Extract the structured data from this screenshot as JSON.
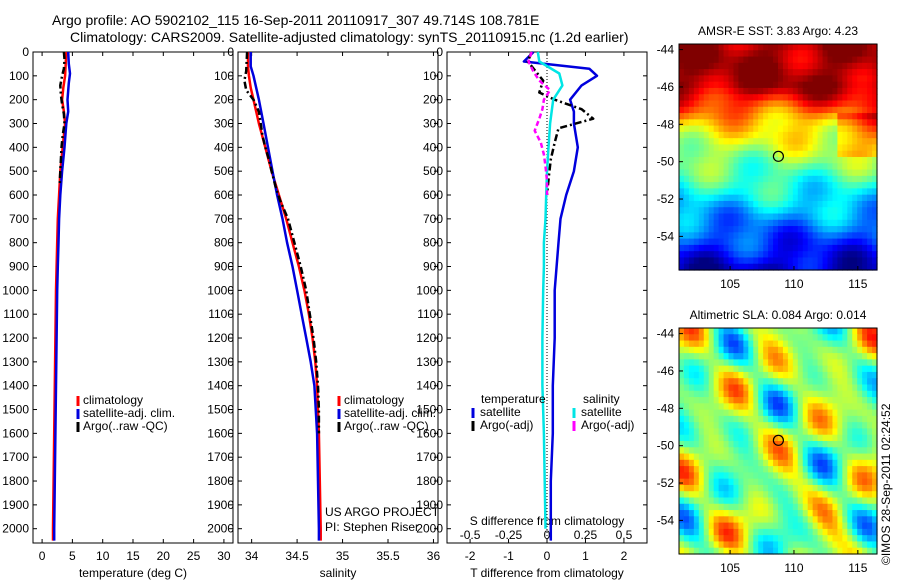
{
  "header": {
    "line1": "Argo profile: AO 5902102_115 16-Sep-2011 20110917_307 49.714S 108.781E",
    "line2": "Climatology: CARS2009. Satellite-adjusted climatology: synTS_20110915.nc (1.2d earlier)"
  },
  "colors": {
    "climatology": "#ff0000",
    "satellite": "#0000dd",
    "argo": "#000000",
    "sal_satellite": "#00e5e5",
    "sal_argo": "#ff00ff"
  },
  "chart_data": [
    {
      "id": "temperature",
      "type": "line",
      "xlabel": "temperature (deg C)",
      "ylabel": "",
      "xlim": [
        -1.5,
        31.5
      ],
      "ylim": [
        2060,
        0
      ],
      "xticks": [
        "0",
        "5",
        "10",
        "15",
        "20",
        "25",
        "30"
      ],
      "yticks": [
        "0",
        "100",
        "200",
        "300",
        "400",
        "500",
        "600",
        "700",
        "800",
        "900",
        "1000",
        "1100",
        "1200",
        "1300",
        "1400",
        "1500",
        "1600",
        "1700",
        "1800",
        "1900",
        "2000"
      ],
      "legend": [
        "climatology",
        "satellite-adj. clim.",
        "Argo(..raw -QC)"
      ],
      "series": [
        {
          "name": "climatology",
          "style": "solid",
          "depth": [
            0,
            50,
            100,
            150,
            200,
            250,
            300,
            400,
            500,
            600,
            700,
            800,
            900,
            1000,
            1200,
            1400,
            1600,
            1800,
            2000,
            2050
          ],
          "values": [
            4.0,
            3.9,
            3.8,
            3.5,
            3.3,
            3.6,
            3.8,
            3.4,
            3.0,
            2.8,
            2.6,
            2.5,
            2.4,
            2.3,
            2.2,
            2.1,
            2.0,
            1.9,
            1.8,
            1.8
          ]
        },
        {
          "name": "satellite-adj. clim.",
          "style": "solid",
          "depth": [
            0,
            50,
            90,
            130,
            200,
            250,
            300,
            400,
            500,
            600,
            700,
            800,
            900,
            1000,
            1200,
            1400,
            1600,
            1800,
            2000,
            2050
          ],
          "values": [
            4.3,
            4.4,
            4.6,
            4.4,
            4.2,
            4.3,
            4.0,
            3.7,
            3.3,
            3.0,
            2.8,
            2.7,
            2.6,
            2.5,
            2.4,
            2.3,
            2.2,
            2.1,
            2.0,
            2.0
          ]
        },
        {
          "name": "Argo(..raw -QC)",
          "style": "dashdot",
          "depth": [
            0,
            30,
            70,
            100,
            140,
            180,
            220,
            260,
            300,
            350,
            400,
            450,
            500,
            560
          ],
          "values": [
            3.6,
            3.7,
            3.6,
            3.3,
            3.0,
            3.1,
            3.3,
            3.6,
            3.7,
            3.4,
            3.2,
            3.1,
            3.0,
            2.9
          ]
        }
      ]
    },
    {
      "id": "salinity",
      "type": "line",
      "xlabel": "salinity",
      "ylabel": "",
      "xlim": [
        33.85,
        36.05
      ],
      "ylim": [
        2060,
        0
      ],
      "xticks": [
        "34",
        "34.5",
        "35",
        "35.5",
        "36"
      ],
      "legend": [
        "climatology",
        "satellite-adj. clim.",
        "Argo(..raw -QC)"
      ],
      "annotation": [
        "US ARGO PROJECT",
        "PI: Stephen Riser"
      ],
      "series": [
        {
          "name": "climatology",
          "style": "solid",
          "depth": [
            0,
            60,
            100,
            150,
            200,
            300,
            400,
            500,
            600,
            700,
            800,
            900,
            1000,
            1100,
            1200,
            1300,
            1400,
            1600,
            1800,
            2000,
            2050
          ],
          "values": [
            33.96,
            33.96,
            33.97,
            33.99,
            34.02,
            34.08,
            34.15,
            34.22,
            34.3,
            34.38,
            34.45,
            34.52,
            34.58,
            34.63,
            34.67,
            34.7,
            34.72,
            34.74,
            34.75,
            34.76,
            34.76
          ]
        },
        {
          "name": "satellite-adj. clim.",
          "style": "solid",
          "depth": [
            0,
            60,
            100,
            150,
            200,
            300,
            400,
            500,
            600,
            700,
            800,
            900,
            1000,
            1100,
            1200,
            1300,
            1400,
            1600,
            1800,
            2000,
            2050
          ],
          "values": [
            33.99,
            33.99,
            34.02,
            34.05,
            34.08,
            34.13,
            34.18,
            34.23,
            34.28,
            34.34,
            34.39,
            34.45,
            34.5,
            34.55,
            34.6,
            34.65,
            34.69,
            34.72,
            34.73,
            34.74,
            34.74
          ]
        },
        {
          "name": "Argo(..raw -QC)",
          "style": "dashdot",
          "depth": [
            0,
            80,
            120,
            160,
            200,
            250,
            300,
            350,
            400,
            450,
            500,
            560,
            620,
            700,
            800,
            900,
            1000,
            1100,
            1200,
            1300,
            1400,
            1500,
            1600
          ],
          "values": [
            33.95,
            33.94,
            33.92,
            33.94,
            34.02,
            34.08,
            34.1,
            34.12,
            34.15,
            34.19,
            34.22,
            34.26,
            34.31,
            34.4,
            34.47,
            34.54,
            34.6,
            34.64,
            34.68,
            34.71,
            34.73,
            34.74,
            34.74
          ]
        }
      ]
    },
    {
      "id": "difference",
      "type": "line",
      "xlabel": "T difference from climatology",
      "xlabel_top": "S difference from climatology",
      "xlim": [
        -2.6,
        2.6
      ],
      "ylim": [
        2060,
        0
      ],
      "xticks": [
        "-2",
        "-1",
        "0",
        "1",
        "2"
      ],
      "xticks_top": [
        "-0.5",
        "-0.25",
        "0",
        "0.25",
        "0.5"
      ],
      "legend_temperature": {
        "title": "temperature",
        "items": [
          "satellite",
          "Argo(-adj)"
        ]
      },
      "legend_salinity": {
        "title": "salinity",
        "items": [
          "satellite",
          "Argo(-adj)"
        ]
      },
      "series": [
        {
          "name": "temperature satellite",
          "style": "solid",
          "color": "satellite",
          "depth": [
            0,
            40,
            70,
            100,
            140,
            200,
            250,
            300,
            400,
            500,
            600,
            700,
            800,
            900,
            1000,
            1200,
            1400,
            1600,
            1800,
            2000,
            2050
          ],
          "values": [
            -0.35,
            -0.6,
            1.1,
            1.3,
            0.9,
            0.6,
            0.7,
            0.7,
            0.8,
            0.7,
            0.5,
            0.35,
            0.3,
            0.25,
            0.2,
            0.2,
            0.15,
            0.15,
            0.1,
            0.1,
            0.1
          ]
        },
        {
          "name": "temperature Argo(-adj)",
          "style": "dashdot",
          "color": "argo",
          "depth": [
            0,
            40,
            80,
            120,
            170,
            200,
            240,
            280,
            320,
            380,
            450,
            520,
            600
          ],
          "values": [
            -0.4,
            -0.5,
            -0.3,
            -0.1,
            -0.2,
            0.2,
            0.9,
            1.2,
            0.3,
            0.2,
            0.1,
            0.05,
            0.0
          ]
        },
        {
          "name": "salinity satellite",
          "style": "solid",
          "color": "sal_satellite",
          "depth": [
            0,
            40,
            90,
            140,
            200,
            300,
            400,
            500,
            600,
            700,
            800,
            900,
            1000,
            1200,
            1400,
            1600,
            1800,
            2000
          ],
          "values": [
            -0.06,
            -0.05,
            0.08,
            0.1,
            0.04,
            0.02,
            0.01,
            0.0,
            -0.005,
            -0.01,
            -0.02,
            -0.02,
            -0.025,
            -0.03,
            -0.03,
            -0.02,
            -0.015,
            -0.01
          ]
        },
        {
          "name": "salinity Argo(-adj)",
          "style": "dashed",
          "color": "sal_argo",
          "depth": [
            0,
            40,
            80,
            120,
            160,
            200,
            240,
            280,
            330,
            380,
            430,
            480,
            540,
            600
          ],
          "values": [
            -0.1,
            -0.12,
            -0.09,
            -0.05,
            0.02,
            -0.02,
            -0.03,
            -0.05,
            -0.08,
            -0.04,
            -0.02,
            -0.01,
            0.0,
            0.0
          ]
        }
      ]
    },
    {
      "id": "sst-map",
      "type": "heatmap",
      "title": "AMSR-E SST: 3.83 Argo: 4.23",
      "xlim": [
        101,
        116.5
      ],
      "ylim": [
        -55.8,
        -43.7
      ],
      "xticks": [
        "105",
        "110",
        "115"
      ],
      "yticks": [
        "-44",
        "-46",
        "-48",
        "-50",
        "-52",
        "-54"
      ],
      "marker": {
        "lon": 108.781,
        "lat": -49.714
      }
    },
    {
      "id": "sla-map",
      "type": "heatmap",
      "title": "Altimetric SLA: 0.084 Argo: 0.014",
      "xlim": [
        101,
        116.5
      ],
      "ylim": [
        -55.8,
        -43.7
      ],
      "xticks": [
        "105",
        "110",
        "115"
      ],
      "yticks": [
        "-44",
        "-46",
        "-48",
        "-50",
        "-52",
        "-54"
      ],
      "marker": {
        "lon": 108.781,
        "lat": -49.714
      }
    }
  ],
  "footer": {
    "credit": "©IMOS 28-Sep-2011 02:24:52"
  }
}
